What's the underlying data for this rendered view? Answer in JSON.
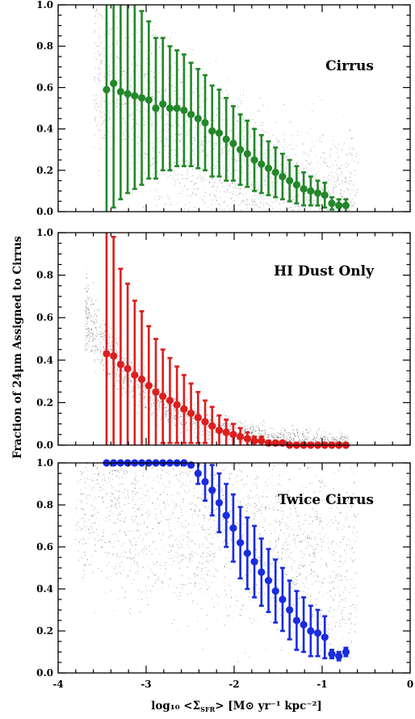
{
  "figure": {
    "ylabel": "Fraction of 24μm Assigned to Cirrus",
    "xlabel": "log₁₀ <Σ",
    "xlabel_sub": "SFR",
    "xlabel_tail": "> [M⊙ yr⁻¹ kpc⁻²]"
  },
  "chart_data": [
    {
      "type": "scatter",
      "label": "Cirrus",
      "color": "#22882a",
      "xlim": [
        -4,
        0
      ],
      "ylim": [
        0,
        1.0
      ],
      "x_ticks": [
        "-4",
        "-3",
        "-2",
        "-1",
        "0"
      ],
      "y_ticks": [
        "0.0",
        "0.2",
        "0.4",
        "0.6",
        "0.8",
        "1.0"
      ],
      "grey_cloud": "decreasing",
      "x": [
        -3.45,
        -3.37,
        -3.29,
        -3.21,
        -3.13,
        -3.05,
        -2.97,
        -2.89,
        -2.81,
        -2.73,
        -2.65,
        -2.57,
        -2.49,
        -2.41,
        -2.33,
        -2.25,
        -2.17,
        -2.09,
        -2.01,
        -1.93,
        -1.85,
        -1.77,
        -1.69,
        -1.61,
        -1.53,
        -1.45,
        -1.37,
        -1.29,
        -1.21,
        -1.13,
        -1.05,
        -0.97,
        -0.89,
        -0.81,
        -0.73
      ],
      "y": [
        0.59,
        0.62,
        0.58,
        0.57,
        0.56,
        0.55,
        0.54,
        0.5,
        0.52,
        0.5,
        0.5,
        0.49,
        0.47,
        0.45,
        0.43,
        0.39,
        0.38,
        0.35,
        0.33,
        0.3,
        0.28,
        0.25,
        0.23,
        0.21,
        0.19,
        0.17,
        0.15,
        0.13,
        0.11,
        0.1,
        0.09,
        0.08,
        0.04,
        0.03,
        0.03
      ],
      "err": [
        0.65,
        0.6,
        0.52,
        0.48,
        0.45,
        0.42,
        0.38,
        0.34,
        0.32,
        0.3,
        0.28,
        0.27,
        0.25,
        0.24,
        0.23,
        0.22,
        0.21,
        0.2,
        0.18,
        0.17,
        0.16,
        0.15,
        0.14,
        0.13,
        0.12,
        0.11,
        0.1,
        0.09,
        0.08,
        0.07,
        0.06,
        0.06,
        0.03,
        0.03,
        0.03
      ]
    },
    {
      "type": "scatter",
      "label": "HI Dust Only",
      "color": "#dd1e1e",
      "xlim": [
        -4,
        0
      ],
      "ylim": [
        0,
        1.0
      ],
      "x_ticks": [
        "-4",
        "-3",
        "-2",
        "-1",
        "0"
      ],
      "y_ticks": [
        "0.0",
        "0.2",
        "0.4",
        "0.6",
        "0.8",
        "1.0"
      ],
      "grey_cloud": "declining",
      "x": [
        -3.45,
        -3.37,
        -3.29,
        -3.21,
        -3.13,
        -3.05,
        -2.97,
        -2.89,
        -2.81,
        -2.73,
        -2.65,
        -2.57,
        -2.49,
        -2.41,
        -2.33,
        -2.25,
        -2.17,
        -2.09,
        -2.01,
        -1.93,
        -1.85,
        -1.77,
        -1.69,
        -1.61,
        -1.53,
        -1.45,
        -1.37,
        -1.29,
        -1.21,
        -1.13,
        -1.05,
        -0.97,
        -0.89,
        -0.81,
        -0.73
      ],
      "y": [
        0.43,
        0.42,
        0.38,
        0.36,
        0.33,
        0.31,
        0.28,
        0.25,
        0.23,
        0.21,
        0.19,
        0.17,
        0.15,
        0.13,
        0.11,
        0.09,
        0.07,
        0.06,
        0.05,
        0.04,
        0.03,
        0.02,
        0.02,
        0.01,
        0.01,
        0.01,
        0.0,
        0.0,
        0.0,
        0.0,
        0.0,
        0.0,
        0.0,
        0.0,
        0.0
      ],
      "err": [
        0.62,
        0.56,
        0.45,
        0.4,
        0.35,
        0.32,
        0.28,
        0.25,
        0.22,
        0.2,
        0.18,
        0.16,
        0.14,
        0.12,
        0.1,
        0.09,
        0.07,
        0.06,
        0.05,
        0.04,
        0.03,
        0.02,
        0.02,
        0.01,
        0.01,
        0.01,
        0.0,
        0.0,
        0.0,
        0.0,
        0.0,
        0.0,
        0.0,
        0.0,
        0.0
      ]
    },
    {
      "type": "scatter",
      "label": "Twice Cirrus",
      "color": "#1a2be0",
      "xlim": [
        -4,
        0
      ],
      "ylim": [
        0,
        1.0
      ],
      "x_ticks": [
        "-4",
        "-3",
        "-2",
        "-1",
        "0"
      ],
      "y_ticks": [
        "0.0",
        "0.2",
        "0.4",
        "0.6",
        "0.8",
        "1.0"
      ],
      "grey_cloud": "broad",
      "x": [
        -3.45,
        -3.37,
        -3.29,
        -3.21,
        -3.13,
        -3.05,
        -2.97,
        -2.89,
        -2.81,
        -2.73,
        -2.65,
        -2.57,
        -2.49,
        -2.41,
        -2.33,
        -2.25,
        -2.17,
        -2.09,
        -2.01,
        -1.93,
        -1.85,
        -1.77,
        -1.69,
        -1.61,
        -1.53,
        -1.45,
        -1.37,
        -1.29,
        -1.21,
        -1.13,
        -1.05,
        -0.97,
        -0.89,
        -0.81,
        -0.73
      ],
      "y": [
        1.0,
        1.0,
        1.0,
        1.0,
        1.0,
        1.0,
        1.0,
        1.0,
        1.0,
        1.0,
        1.0,
        1.0,
        0.99,
        0.95,
        0.91,
        0.87,
        0.81,
        0.75,
        0.69,
        0.62,
        0.57,
        0.53,
        0.48,
        0.44,
        0.39,
        0.35,
        0.3,
        0.25,
        0.23,
        0.2,
        0.19,
        0.17,
        0.09,
        0.08,
        0.1
      ],
      "err": [
        0.0,
        0.0,
        0.0,
        0.0,
        0.0,
        0.0,
        0.0,
        0.0,
        0.0,
        0.0,
        0.0,
        0.0,
        0.01,
        0.05,
        0.09,
        0.12,
        0.14,
        0.15,
        0.16,
        0.17,
        0.17,
        0.17,
        0.16,
        0.15,
        0.15,
        0.15,
        0.14,
        0.14,
        0.13,
        0.12,
        0.11,
        0.1,
        0.02,
        0.02,
        0.02
      ]
    }
  ]
}
